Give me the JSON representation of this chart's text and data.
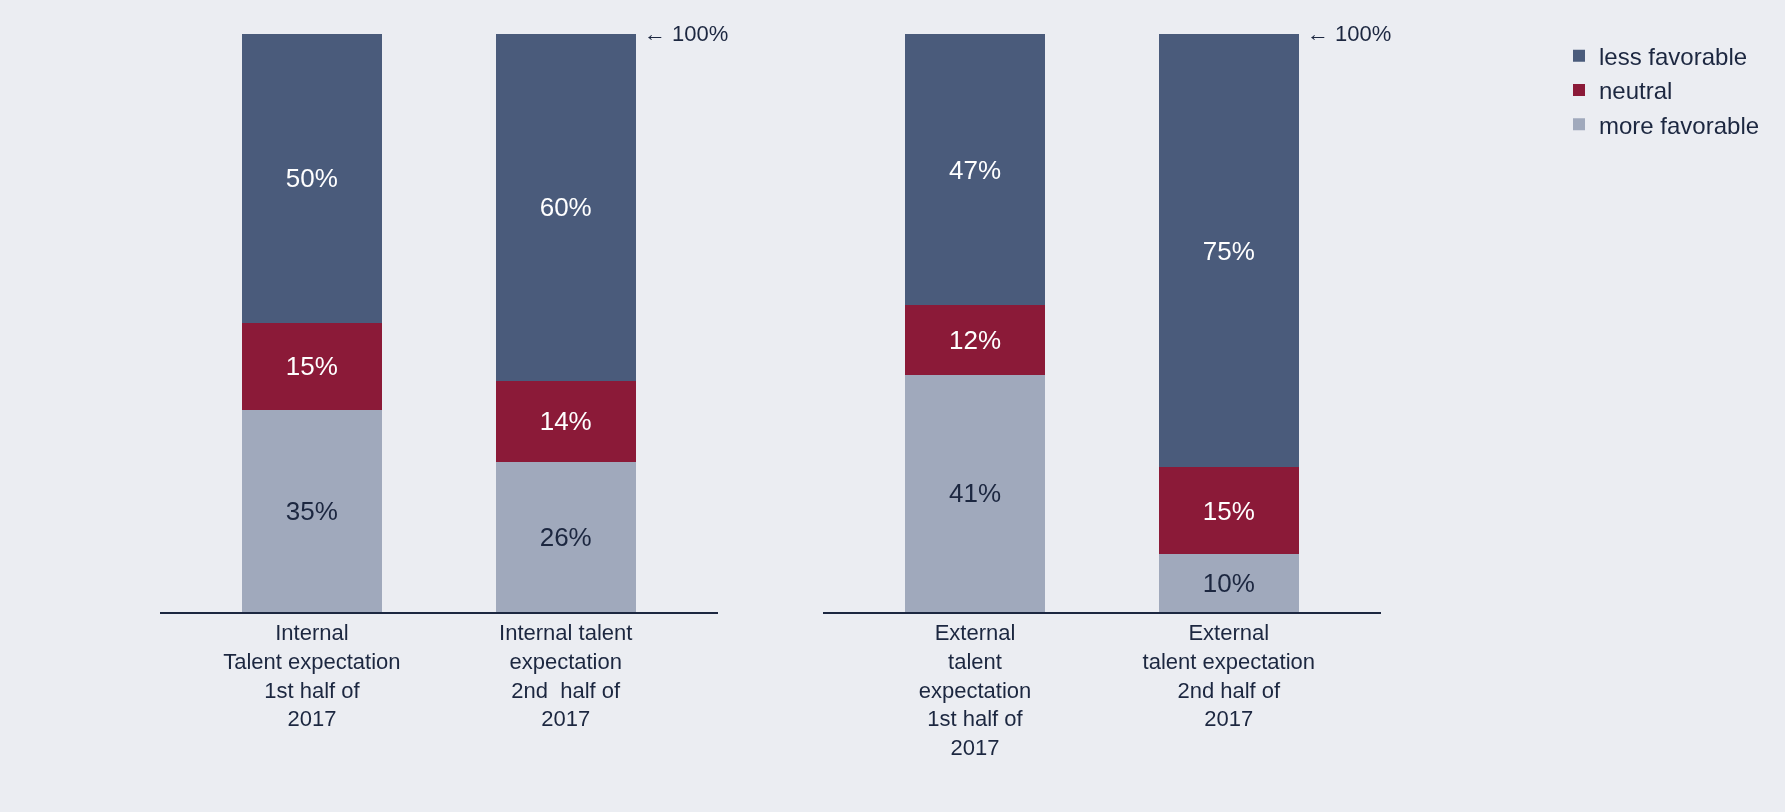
{
  "chart_data": [
    {
      "type": "bar",
      "stacked": true,
      "categories": [
        "Internal\nTalent expectation\n1st half of\n2017",
        "Internal talent\nexpectation\n2nd  half of\n2017"
      ],
      "tick_labels": "x",
      "grid": false,
      "series": [
        {
          "color": "#a0a9bc",
          "values": [
            35,
            26
          ],
          "value_labels": [
            "35%",
            "26%"
          ]
        },
        {
          "color": "#8b1a38",
          "values": [
            15,
            14
          ],
          "value_labels": [
            "15%",
            "14%"
          ]
        },
        {
          "color": "#4a5b7b",
          "values": [
            50,
            60
          ],
          "value_labels": [
            "50%",
            "60%"
          ]
        }
      ],
      "annotations": [
        "← 100%"
      ]
    },
    {
      "type": "bar",
      "stacked": true,
      "categories": [
        "External\ntalent\nexpectation\n1st half of\n2017",
        "External\ntalent expectation\n2nd half of\n2017"
      ],
      "tick_labels": "x",
      "grid": false,
      "legend": "top right",
      "series": [
        {
          "name": "more favorable",
          "color": "#a0a9bc",
          "values": [
            41,
            10
          ],
          "value_labels": [
            "41%",
            "10%"
          ]
        },
        {
          "name": "neutral",
          "color": "#8b1a38",
          "values": [
            12,
            15
          ],
          "value_labels": [
            "12%",
            "15%"
          ]
        },
        {
          "name": "less favorable",
          "color": "#4a5b7b",
          "values": [
            47,
            75
          ],
          "value_labels": [
            "47%",
            "75%"
          ]
        }
      ],
      "annotations": [
        "← 100%"
      ]
    }
  ]
}
